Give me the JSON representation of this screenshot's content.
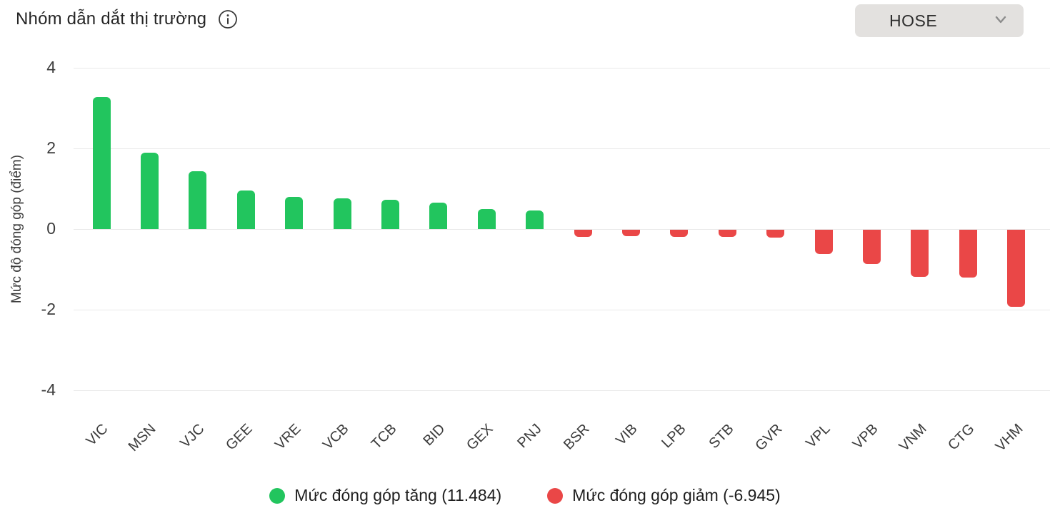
{
  "header": {
    "title": "Nhóm dẫn dắt thị trường",
    "info_icon": "info-circle-icon",
    "exchange_selector": {
      "value": "HOSE",
      "chevron_icon": "chevron-down-icon"
    }
  },
  "chart_data": {
    "type": "bar",
    "title": "Nhóm dẫn dắt thị trường",
    "xlabel": "",
    "ylabel": "Mức độ đóng góp (điểm)",
    "ylim": [
      -4,
      4
    ],
    "yticks": [
      4,
      2,
      0,
      -2,
      -4
    ],
    "grid": true,
    "legend_position": "bottom",
    "categories": [
      "VIC",
      "MSN",
      "VJC",
      "GEE",
      "VRE",
      "VCB",
      "TCB",
      "BID",
      "GEX",
      "PNJ",
      "BSR",
      "VIB",
      "LPB",
      "STB",
      "GVR",
      "VPL",
      "VPB",
      "VNM",
      "CTG",
      "VHM"
    ],
    "values": [
      3.27,
      1.9,
      1.43,
      0.96,
      0.8,
      0.76,
      0.72,
      0.65,
      0.5,
      0.46,
      -0.18,
      -0.16,
      -0.18,
      -0.17,
      -0.19,
      -0.61,
      -0.85,
      -1.16,
      -1.19,
      -1.92
    ],
    "colors": {
      "positive": "#22c55e",
      "negative": "#ea4747"
    },
    "legend": [
      {
        "id": "up",
        "label": "Mức đóng góp tăng (11.484)",
        "color": "#22c55e"
      },
      {
        "id": "down",
        "label": "Mức đóng góp giảm (-6.945)",
        "color": "#ea4747"
      }
    ]
  }
}
